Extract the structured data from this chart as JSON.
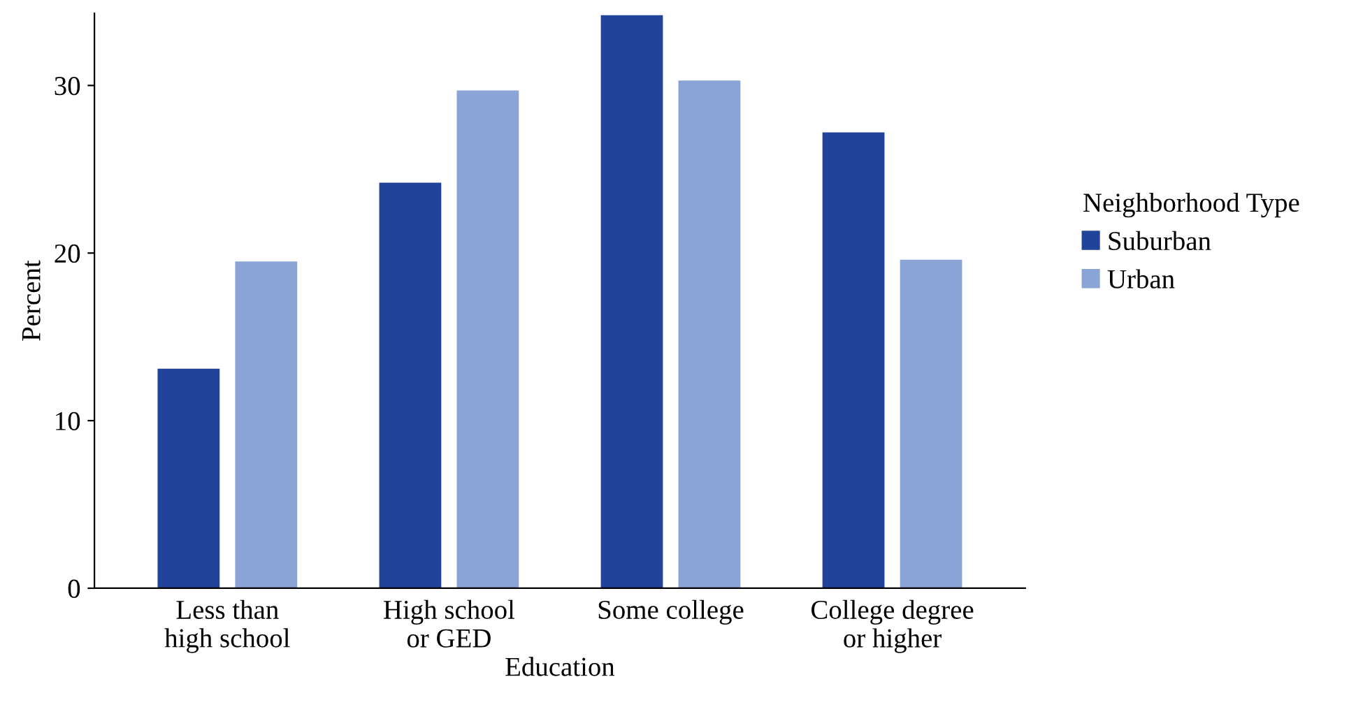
{
  "chart_data": {
    "type": "bar",
    "xlabel": "Education",
    "ylabel": "Percent",
    "legend_title": "Neighborhood Type",
    "categories": [
      "Less than\nhigh school",
      "High school\nor GED",
      "Some college",
      "College degree\nor higher"
    ],
    "series": [
      {
        "name": "Suburban",
        "color": "#21439a",
        "values": [
          13.1,
          24.2,
          34.2,
          27.2
        ]
      },
      {
        "name": "Urban",
        "color": "#8aa4d5",
        "values": [
          19.5,
          29.7,
          30.3,
          19.6
        ]
      }
    ],
    "ylim": [
      0,
      34.3
    ],
    "yticks": [
      0,
      10,
      20,
      30
    ],
    "grid": false,
    "legend": "right"
  }
}
